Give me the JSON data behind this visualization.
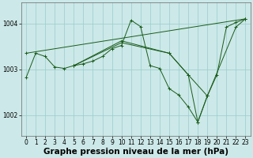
{
  "title": "Graphe pression niveau de la mer (hPa)",
  "bg_color": "#cce8e8",
  "grid_color": "#99cccc",
  "line_color": "#1a5c1a",
  "yticks": [
    1002,
    1003,
    1004
  ],
  "xticks": [
    0,
    1,
    2,
    3,
    4,
    5,
    6,
    7,
    8,
    9,
    10,
    11,
    12,
    13,
    14,
    15,
    16,
    17,
    18,
    19,
    20,
    21,
    22,
    23
  ],
  "xlim": [
    -0.5,
    23.5
  ],
  "ylim": [
    1001.55,
    1004.45
  ],
  "title_fontsize": 7.5,
  "tick_fontsize": 5.5,
  "figsize": [
    3.2,
    2.0
  ],
  "dpi": 100,
  "series": [
    {
      "x": [
        0,
        1,
        2,
        3,
        4,
        5,
        6,
        7,
        8,
        9,
        10,
        11,
        12,
        13,
        14,
        15,
        16,
        17,
        18,
        19,
        20,
        21,
        22,
        23
      ],
      "y": [
        1002.82,
        1003.35,
        1003.28,
        1003.05,
        1003.02,
        1003.08,
        1003.12,
        1003.18,
        1003.28,
        1003.45,
        1003.52,
        1004.07,
        1003.93,
        1003.08,
        1003.02,
        1002.58,
        1002.44,
        1002.18,
        1001.85,
        1002.42,
        1002.88,
        1003.92,
        1004.02,
        1004.1
      ]
    },
    {
      "x": [
        0,
        23
      ],
      "y": [
        1003.35,
        1004.1
      ]
    },
    {
      "x": [
        5,
        10,
        15,
        17,
        18,
        19,
        22,
        23
      ],
      "y": [
        1003.08,
        1003.58,
        1003.35,
        1002.88,
        1001.85,
        1002.42,
        1003.92,
        1004.1
      ]
    },
    {
      "x": [
        5,
        10,
        15,
        17,
        19
      ],
      "y": [
        1003.08,
        1003.62,
        1003.35,
        1002.88,
        1002.42
      ]
    }
  ]
}
